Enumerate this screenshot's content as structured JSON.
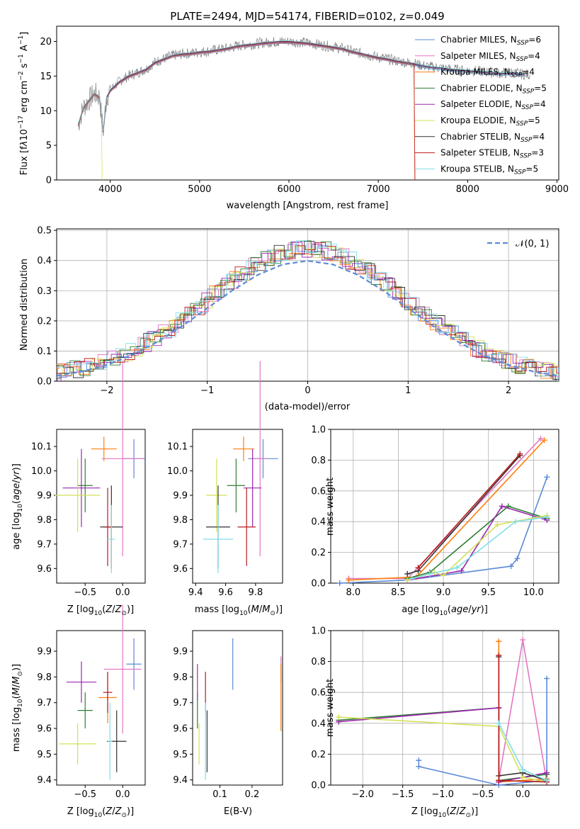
{
  "colors": {
    "spectrum": "#808080",
    "normal_curve": "#5b8bd6",
    "grid": "#b0b0b0"
  },
  "chart_data": [
    {
      "id": "spectrum",
      "type": "line",
      "title": "PLATE=2494, MJD=54174, FIBERID=0102, z=0.049",
      "xlabel": "wavelength [Angstrom, rest frame]",
      "ylabel": "Flux [f_λ10^{-17} erg cm^{-2} s^{-1} A^{-1}]",
      "xlim": [
        3400,
        9020
      ],
      "ylim": [
        0,
        22.2
      ],
      "xticks": [
        4000,
        5000,
        6000,
        7000,
        8000,
        9000
      ],
      "yticks": [
        0,
        5,
        10,
        15,
        20
      ],
      "grid": false,
      "legend_placement": "top-right",
      "spectrum_x": [
        3640,
        3700,
        3760,
        3820,
        3880,
        3920,
        3960,
        4000,
        4100,
        4200,
        4300,
        4400,
        4500,
        4600,
        4700,
        4800,
        4900,
        5000,
        5100,
        5200,
        5300,
        5400,
        5500,
        5600,
        5700,
        5800,
        5900,
        6000,
        6100,
        6200,
        6300,
        6400,
        6500,
        6600,
        6700,
        6800,
        6900,
        7000,
        7100,
        7200,
        7300,
        7400,
        7500,
        7600,
        7700,
        7800,
        7900,
        8000,
        8100,
        8200,
        8300,
        8400,
        8500,
        8600,
        8700
      ],
      "spectrum_y": [
        8,
        10.5,
        11.5,
        12.5,
        12,
        7,
        12,
        13,
        14.2,
        15,
        15.5,
        16,
        17,
        17.5,
        18,
        18.2,
        18.3,
        18.5,
        18.6,
        18.8,
        19,
        19.3,
        19.5,
        19.6,
        19.8,
        19.9,
        20,
        20,
        19.9,
        19.8,
        19.6,
        19.4,
        19.2,
        19,
        18.6,
        18.3,
        18,
        17.7,
        17.5,
        17.2,
        17,
        16.8,
        16.5,
        16.3,
        16.2,
        16,
        15.9,
        15.8,
        15.7,
        15.6,
        15.5,
        15.4,
        15.5,
        15.3,
        15.2
      ],
      "legend": [
        {
          "label": "Chabrier MILES, N_SSP=6",
          "main": "Chabrier MILES, N",
          "sub": "SSP",
          "tail": "=6",
          "color": "#5b8bd6"
        },
        {
          "label": "Salpeter MILES, N_SSP=4",
          "main": "Salpeter MILES, N",
          "sub": "SSP",
          "tail": "=4",
          "color": "#e377c2"
        },
        {
          "label": "Kroupa MILES, N_SSP=4",
          "main": "Kroupa MILES, N",
          "sub": "SSP",
          "tail": "=4",
          "color": "#ff7f0e"
        },
        {
          "label": "Chabrier ELODIE, N_SSP=5",
          "main": "Chabrier ELODIE, N",
          "sub": "SSP",
          "tail": "=5",
          "color": "#2e7d32"
        },
        {
          "label": "Salpeter ELODIE, N_SSP=4",
          "main": "Salpeter ELODIE, N",
          "sub": "SSP",
          "tail": "=4",
          "color": "#9c27b0"
        },
        {
          "label": "Kroupa ELODIE, N_SSP=5",
          "main": "Kroupa ELODIE, N",
          "sub": "SSP",
          "tail": "=5",
          "color": "#d4e157"
        },
        {
          "label": "Chabrier STELIB, N_SSP=4",
          "main": "Chabrier STELIB, N",
          "sub": "SSP",
          "tail": "=4",
          "color": "#333333"
        },
        {
          "label": "Salpeter STELIB, N_SSP=3",
          "main": "Salpeter STELIB, N",
          "sub": "SSP",
          "tail": "=3",
          "color": "#b71c1c"
        },
        {
          "label": "Kroupa STELIB, N_SSP=5",
          "main": "Kroupa STELIB, N",
          "sub": "SSP",
          "tail": "=5",
          "color": "#80deea"
        }
      ]
    },
    {
      "id": "residuals",
      "type": "line",
      "xlabel": "(data-model)/error",
      "ylabel": "Normed distribution",
      "xlim": [
        -2.5,
        2.5
      ],
      "ylim": [
        0,
        0.505
      ],
      "xticks": [
        -2,
        -1,
        0,
        1,
        2
      ],
      "yticks": [
        0.0,
        0.1,
        0.2,
        0.3,
        0.4,
        0.5
      ],
      "grid": true,
      "legend_placement": "top-right",
      "legend_label": "𝒩(0, 1)",
      "normal_x": [
        -2.5,
        -2.25,
        -2,
        -1.75,
        -1.5,
        -1.25,
        -1,
        -0.75,
        -0.5,
        -0.25,
        0,
        0.25,
        0.5,
        0.75,
        1,
        1.25,
        1.5,
        1.75,
        2,
        2.25,
        2.5
      ],
      "normal_y": [
        0.018,
        0.032,
        0.054,
        0.086,
        0.13,
        0.183,
        0.242,
        0.301,
        0.352,
        0.387,
        0.399,
        0.387,
        0.352,
        0.301,
        0.242,
        0.183,
        0.13,
        0.086,
        0.054,
        0.032,
        0.018
      ],
      "hist_envelope_y": [
        0.02,
        0.03,
        0.05,
        0.08,
        0.12,
        0.17,
        0.24,
        0.31,
        0.38,
        0.42,
        0.44,
        0.42,
        0.38,
        0.31,
        0.24,
        0.17,
        0.12,
        0.08,
        0.05,
        0.03,
        0.02
      ]
    },
    {
      "id": "age_vs_Z",
      "type": "scatter",
      "xlabel": "Z [log10(Z/Z☉)]",
      "ylabel": "age [log10(age/yr)]",
      "xlim": [
        -0.88,
        0.3
      ],
      "ylim": [
        9.54,
        10.17
      ],
      "xticks": [
        -0.5,
        0.0
      ],
      "yticks": [
        9.6,
        9.7,
        9.8,
        9.9,
        10.0,
        10.1
      ],
      "series": [
        {
          "x": 0.15,
          "y": 10.05,
          "xerr": 0.15,
          "yerr": 0.08,
          "color": "#5b8bd6"
        },
        {
          "x": 0.0,
          "y": 10.05,
          "xerr": 0.28,
          "yerr": 0.4,
          "color": "#e377c2"
        },
        {
          "x": -0.25,
          "y": 10.09,
          "xerr": 0.17,
          "yerr": 0.05,
          "color": "#ff7f0e"
        },
        {
          "x": -0.5,
          "y": 9.94,
          "xerr": 0.1,
          "yerr": 0.11,
          "color": "#2e7d32"
        },
        {
          "x": -0.55,
          "y": 9.93,
          "xerr": 0.25,
          "yerr": 0.16,
          "color": "#9c27b0"
        },
        {
          "x": -0.6,
          "y": 9.9,
          "xerr": 0.3,
          "yerr": 0.15,
          "color": "#d4e157"
        },
        {
          "x": -0.15,
          "y": 9.77,
          "xerr": 0.15,
          "yerr": 0.17,
          "color": "#333333"
        },
        {
          "x": -0.2,
          "y": 9.77,
          "xerr": 0.05,
          "yerr": 0.16,
          "color": "#b71c1c"
        },
        {
          "x": -0.15,
          "y": 9.72,
          "xerr": 0.05,
          "yerr": 0.14,
          "color": "#80deea"
        }
      ]
    },
    {
      "id": "age_vs_mass",
      "type": "scatter",
      "xlabel": "mass [log10(M/M☉)]",
      "ylabel": "",
      "xlim": [
        9.38,
        9.98
      ],
      "ylim": [
        9.54,
        10.17
      ],
      "xticks": [
        9.4,
        9.6,
        9.8
      ],
      "yticks": [
        9.6,
        9.7,
        9.8,
        9.9,
        10.0,
        10.1
      ],
      "series": [
        {
          "x": 9.85,
          "y": 10.05,
          "xerr": 0.1,
          "yerr": 0.08,
          "color": "#5b8bd6"
        },
        {
          "x": 9.83,
          "y": 10.05,
          "xerr": 0.05,
          "yerr": 0.4,
          "color": "#e377c2"
        },
        {
          "x": 9.72,
          "y": 10.09,
          "xerr": 0.07,
          "yerr": 0.05,
          "color": "#ff7f0e"
        },
        {
          "x": 9.67,
          "y": 9.94,
          "xerr": 0.06,
          "yerr": 0.11,
          "color": "#2e7d32"
        },
        {
          "x": 9.78,
          "y": 9.93,
          "xerr": 0.06,
          "yerr": 0.16,
          "color": "#9c27b0"
        },
        {
          "x": 9.54,
          "y": 9.9,
          "xerr": 0.07,
          "yerr": 0.15,
          "color": "#d4e157"
        },
        {
          "x": 9.55,
          "y": 9.77,
          "xerr": 0.08,
          "yerr": 0.17,
          "color": "#333333"
        },
        {
          "x": 9.74,
          "y": 9.77,
          "xerr": 0.06,
          "yerr": 0.16,
          "color": "#b71c1c"
        },
        {
          "x": 9.55,
          "y": 9.72,
          "xerr": 0.1,
          "yerr": 0.14,
          "color": "#80deea"
        }
      ]
    },
    {
      "id": "weight_vs_age",
      "type": "line",
      "xlabel": "age [log10(age/yr)]",
      "ylabel": "mass weight",
      "xlim": [
        7.75,
        10.28
      ],
      "ylim": [
        0,
        1.0
      ],
      "xticks": [
        8.0,
        8.5,
        9.0,
        9.5,
        10.0
      ],
      "yticks": [
        0.0,
        0.2,
        0.4,
        0.6,
        0.8,
        1.0
      ],
      "grid": true,
      "series": [
        {
          "x": [
            7.85,
            8.6,
            9.75,
            9.82,
            10.15
          ],
          "y": [
            0.0,
            0.02,
            0.11,
            0.16,
            0.69
          ],
          "color": "#5b8bd6"
        },
        {
          "x": [
            7.95,
            8.6,
            10.08
          ],
          "y": [
            0.03,
            0.03,
            0.94
          ],
          "color": "#e377c2"
        },
        {
          "x": [
            7.95,
            8.7,
            10.12
          ],
          "y": [
            0.02,
            0.04,
            0.93
          ],
          "color": "#ff7f0e"
        },
        {
          "x": [
            8.6,
            8.85,
            9.72,
            10.15
          ],
          "y": [
            0.03,
            0.07,
            0.5,
            0.42
          ],
          "color": "#2e7d32"
        },
        {
          "x": [
            8.6,
            9.2,
            9.65,
            10.15
          ],
          "y": [
            0.02,
            0.08,
            0.5,
            0.41
          ],
          "color": "#9c27b0"
        },
        {
          "x": [
            8.6,
            8.9,
            9.0,
            9.6,
            10.15
          ],
          "y": [
            0.02,
            0.07,
            0.05,
            0.38,
            0.44
          ],
          "color": "#d4e157"
        },
        {
          "x": [
            8.6,
            8.72,
            9.85
          ],
          "y": [
            0.06,
            0.08,
            0.83
          ],
          "color": "#333333"
        },
        {
          "x": [
            8.72,
            9.85
          ],
          "y": [
            0.1,
            0.84
          ],
          "color": "#b71c1c"
        },
        {
          "x": [
            8.65,
            8.85,
            9.15,
            9.8,
            10.15
          ],
          "y": [
            0.03,
            0.06,
            0.1,
            0.4,
            0.43
          ],
          "color": "#80deea"
        }
      ]
    },
    {
      "id": "mass_vs_Z",
      "type": "scatter",
      "xlabel": "Z [log10(Z/Z☉)]",
      "ylabel": "mass [log10(M/M☉)]",
      "xlim": [
        -0.88,
        0.3
      ],
      "ylim": [
        9.38,
        9.98
      ],
      "xticks": [
        -0.5,
        0.0
      ],
      "yticks": [
        9.4,
        9.5,
        9.6,
        9.7,
        9.8,
        9.9
      ],
      "series": [
        {
          "x": 0.15,
          "y": 9.85,
          "xerr": 0.1,
          "yerr": 0.1,
          "color": "#5b8bd6"
        },
        {
          "x": 0.0,
          "y": 9.83,
          "xerr": 0.25,
          "yerr": 0.25,
          "color": "#e377c2"
        },
        {
          "x": -0.2,
          "y": 9.72,
          "xerr": 0.12,
          "yerr": 0.1,
          "color": "#ff7f0e"
        },
        {
          "x": -0.5,
          "y": 9.67,
          "xerr": 0.1,
          "yerr": 0.07,
          "color": "#2e7d32"
        },
        {
          "x": -0.55,
          "y": 9.78,
          "xerr": 0.2,
          "yerr": 0.08,
          "color": "#9c27b0"
        },
        {
          "x": -0.6,
          "y": 9.54,
          "xerr": 0.25,
          "yerr": 0.08,
          "color": "#d4e157"
        },
        {
          "x": -0.08,
          "y": 9.55,
          "xerr": 0.13,
          "yerr": 0.12,
          "color": "#333333"
        },
        {
          "x": -0.2,
          "y": 9.74,
          "xerr": 0.06,
          "yerr": 0.08,
          "color": "#b71c1c"
        },
        {
          "x": -0.17,
          "y": 9.55,
          "xerr": 0.03,
          "yerr": 0.15,
          "color": "#80deea"
        }
      ]
    },
    {
      "id": "mass_vs_EBV",
      "type": "scatter",
      "xlabel": "E(B-V)",
      "ylabel": "",
      "xlim": [
        0.015,
        0.295
      ],
      "ylim": [
        9.38,
        9.98
      ],
      "xticks": [
        0.1,
        0.2
      ],
      "yticks": [
        9.4,
        9.5,
        9.6,
        9.7,
        9.8,
        9.9
      ],
      "series": [
        {
          "x": 0.14,
          "y": 9.85,
          "xerr": 0.0,
          "yerr": 0.1,
          "color": "#5b8bd6"
        },
        {
          "x": 0.29,
          "y": 9.83,
          "xerr": 0.0,
          "yerr": 0.05,
          "color": "#e377c2"
        },
        {
          "x": 0.29,
          "y": 9.72,
          "xerr": 0.0,
          "yerr": 0.13,
          "color": "#ff7f0e"
        },
        {
          "x": 0.03,
          "y": 9.67,
          "xerr": 0.0,
          "yerr": 0.07,
          "color": "#2e7d32"
        },
        {
          "x": 0.03,
          "y": 9.78,
          "xerr": 0.0,
          "yerr": 0.07,
          "color": "#9c27b0"
        },
        {
          "x": 0.035,
          "y": 9.54,
          "xerr": 0.0,
          "yerr": 0.08,
          "color": "#d4e157"
        },
        {
          "x": 0.06,
          "y": 9.55,
          "xerr": 0.0,
          "yerr": 0.12,
          "color": "#333333"
        },
        {
          "x": 0.055,
          "y": 9.74,
          "xerr": 0.0,
          "yerr": 0.08,
          "color": "#b71c1c"
        },
        {
          "x": 0.055,
          "y": 9.55,
          "xerr": 0.0,
          "yerr": 0.15,
          "color": "#80deea"
        }
      ]
    },
    {
      "id": "weight_vs_Z",
      "type": "line",
      "xlabel": "Z [log10(Z/Z☉)]",
      "ylabel": "mass weight",
      "xlim": [
        -2.4,
        0.45
      ],
      "ylim": [
        0,
        1.0
      ],
      "xticks": [
        -2.0,
        -1.5,
        -1.0,
        -0.5,
        0.0
      ],
      "yticks": [
        0.0,
        0.2,
        0.4,
        0.6,
        0.8,
        1.0
      ],
      "grid": true,
      "series": [
        {
          "x": [
            -1.3,
            -1.3,
            -0.3,
            0.3,
            0.3
          ],
          "y": [
            0.16,
            0.12,
            0.0,
            0.03,
            0.69
          ],
          "color": "#5b8bd6"
        },
        {
          "x": [
            -0.3,
            0.0,
            0.3
          ],
          "y": [
            0.03,
            0.94,
            0.02
          ],
          "color": "#e377c2"
        },
        {
          "x": [
            -0.3,
            -0.3,
            0.3
          ],
          "y": [
            0.93,
            0.02,
            0.04
          ],
          "color": "#ff7f0e"
        },
        {
          "x": [
            -2.3,
            -0.3,
            -0.3,
            0.3
          ],
          "y": [
            0.42,
            0.5,
            0.03,
            0.07
          ],
          "color": "#2e7d32"
        },
        {
          "x": [
            -2.3,
            -0.3,
            -0.3,
            0.3
          ],
          "y": [
            0.41,
            0.5,
            0.02,
            0.08
          ],
          "color": "#9c27b0"
        },
        {
          "x": [
            -2.3,
            -0.3,
            0.0,
            0.3
          ],
          "y": [
            0.44,
            0.38,
            0.05,
            0.02
          ],
          "color": "#d4e157"
        },
        {
          "x": [
            -0.3,
            -0.3,
            0.0,
            0.3
          ],
          "y": [
            0.83,
            0.06,
            0.08,
            0.03
          ],
          "color": "#333333"
        },
        {
          "x": [
            -0.3,
            -0.3,
            0.3
          ],
          "y": [
            0.84,
            0.03,
            0.02
          ],
          "color": "#b71c1c"
        },
        {
          "x": [
            -0.3,
            0.0,
            0.3
          ],
          "y": [
            0.4,
            0.1,
            0.03
          ],
          "color": "#80deea"
        }
      ]
    }
  ]
}
